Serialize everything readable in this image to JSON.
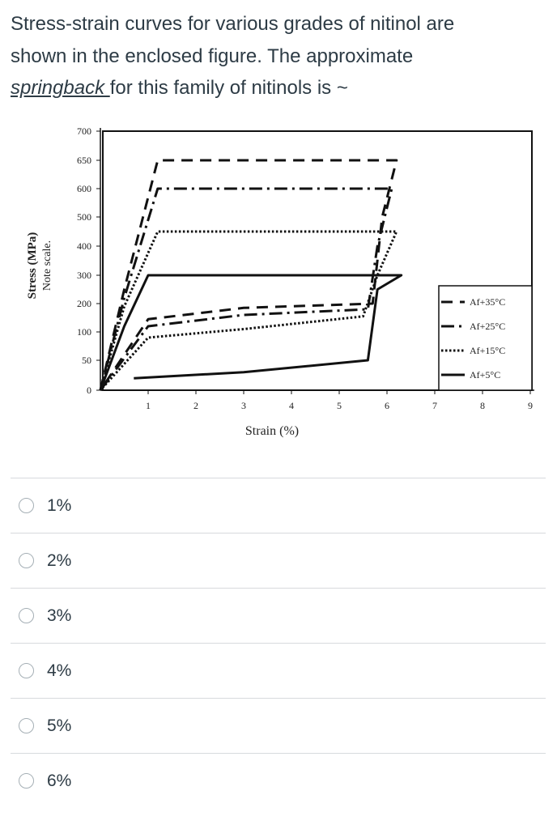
{
  "question": {
    "line1": "Stress-strain curves for various grades of nitinol are",
    "line2": "shown in the enclosed figure.  The approximate",
    "underlined": "springback ",
    "line3_rest": "for this family of nitinols is ~"
  },
  "chart_data": {
    "type": "line",
    "title": "",
    "xlabel": "Strain (%)",
    "ylabel": "Stress (MPa)",
    "ylabel_note": "Note scale.",
    "xlim": [
      0,
      9
    ],
    "x_ticks": [
      "1",
      "2",
      "3",
      "4",
      "5",
      "6",
      "7",
      "8",
      "9"
    ],
    "y_ticks": [
      "700",
      "650",
      "600",
      "500",
      "400",
      "300",
      "200",
      "100",
      "50",
      "0"
    ],
    "grid": false,
    "legend_position": "right",
    "series": [
      {
        "name": "Af+35°C",
        "style": "dashed",
        "points": [
          [
            0,
            0
          ],
          [
            0.5,
            250
          ],
          [
            1.2,
            650
          ],
          [
            6.2,
            650
          ],
          [
            5.9,
            500
          ],
          [
            5.7,
            200
          ],
          [
            3,
            185
          ],
          [
            1,
            145
          ],
          [
            0,
            0
          ]
        ]
      },
      {
        "name": "Af+25°C",
        "style": "dash-dot",
        "points": [
          [
            0,
            0
          ],
          [
            0.5,
            220
          ],
          [
            1.2,
            600
          ],
          [
            6.1,
            600
          ],
          [
            5.8,
            400
          ],
          [
            5.6,
            180
          ],
          [
            3,
            160
          ],
          [
            1,
            120
          ],
          [
            0,
            0
          ]
        ]
      },
      {
        "name": "Af+15°C",
        "style": "dotted",
        "points": [
          [
            0,
            0
          ],
          [
            0.5,
            190
          ],
          [
            1.2,
            450
          ],
          [
            6.2,
            450
          ],
          [
            5.8,
            300
          ],
          [
            5.5,
            155
          ],
          [
            3,
            110
          ],
          [
            1,
            90
          ],
          [
            0,
            0
          ]
        ]
      },
      {
        "name": "Af+5°C",
        "style": "solid",
        "points": [
          [
            0,
            0
          ],
          [
            0.5,
            120
          ],
          [
            1.0,
            300
          ],
          [
            6.3,
            300
          ],
          [
            5.8,
            250
          ],
          [
            5.6,
            50
          ],
          [
            3,
            30
          ],
          [
            0.7,
            20
          ]
        ]
      }
    ]
  },
  "answers": [
    {
      "label": "1%"
    },
    {
      "label": "2%"
    },
    {
      "label": "3%"
    },
    {
      "label": "4%"
    },
    {
      "label": "5%"
    },
    {
      "label": "6%"
    }
  ]
}
